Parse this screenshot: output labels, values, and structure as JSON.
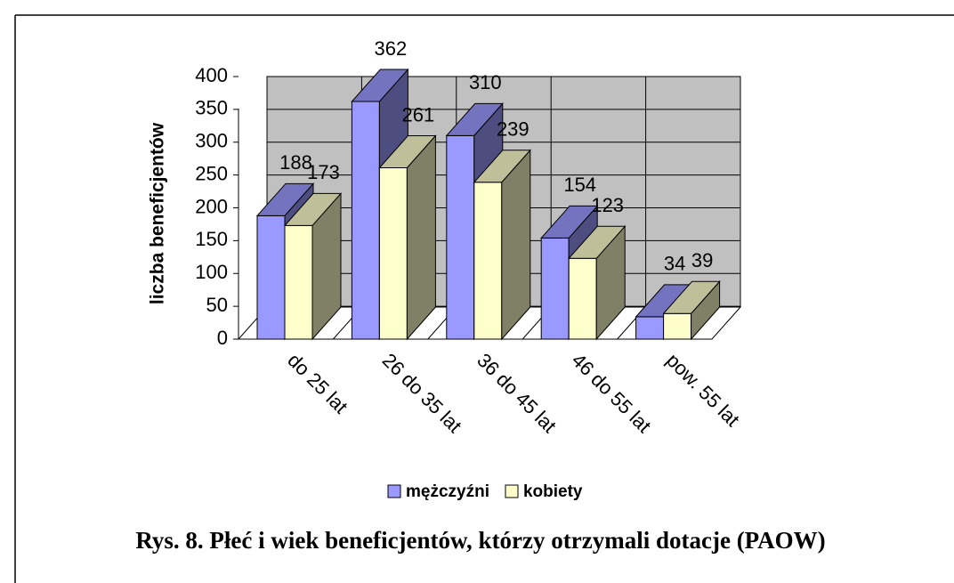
{
  "chart_data": {
    "type": "bar3d",
    "y_label": "liczba beneficjentów",
    "caption": "Rys. 8. Płeć i wiek beneficjentów, którzy otrzymali dotacje (PAOW)",
    "categories": [
      "do 25 lat",
      "26 do 35 lat",
      "36 do 45 lat",
      "46 do 55 lat",
      "pow. 55 lat"
    ],
    "series": [
      {
        "name": "mężczyźni",
        "color": "#9999ff",
        "values": [
          188,
          362,
          310,
          154,
          34
        ]
      },
      {
        "name": "kobiety",
        "color": "#ffffcc",
        "values": [
          173,
          261,
          239,
          123,
          39
        ]
      }
    ],
    "ylim": [
      0,
      400
    ],
    "yticks": [
      0,
      50,
      100,
      150,
      200,
      250,
      300,
      350,
      400
    ],
    "grid": true,
    "legend": "bottom"
  }
}
